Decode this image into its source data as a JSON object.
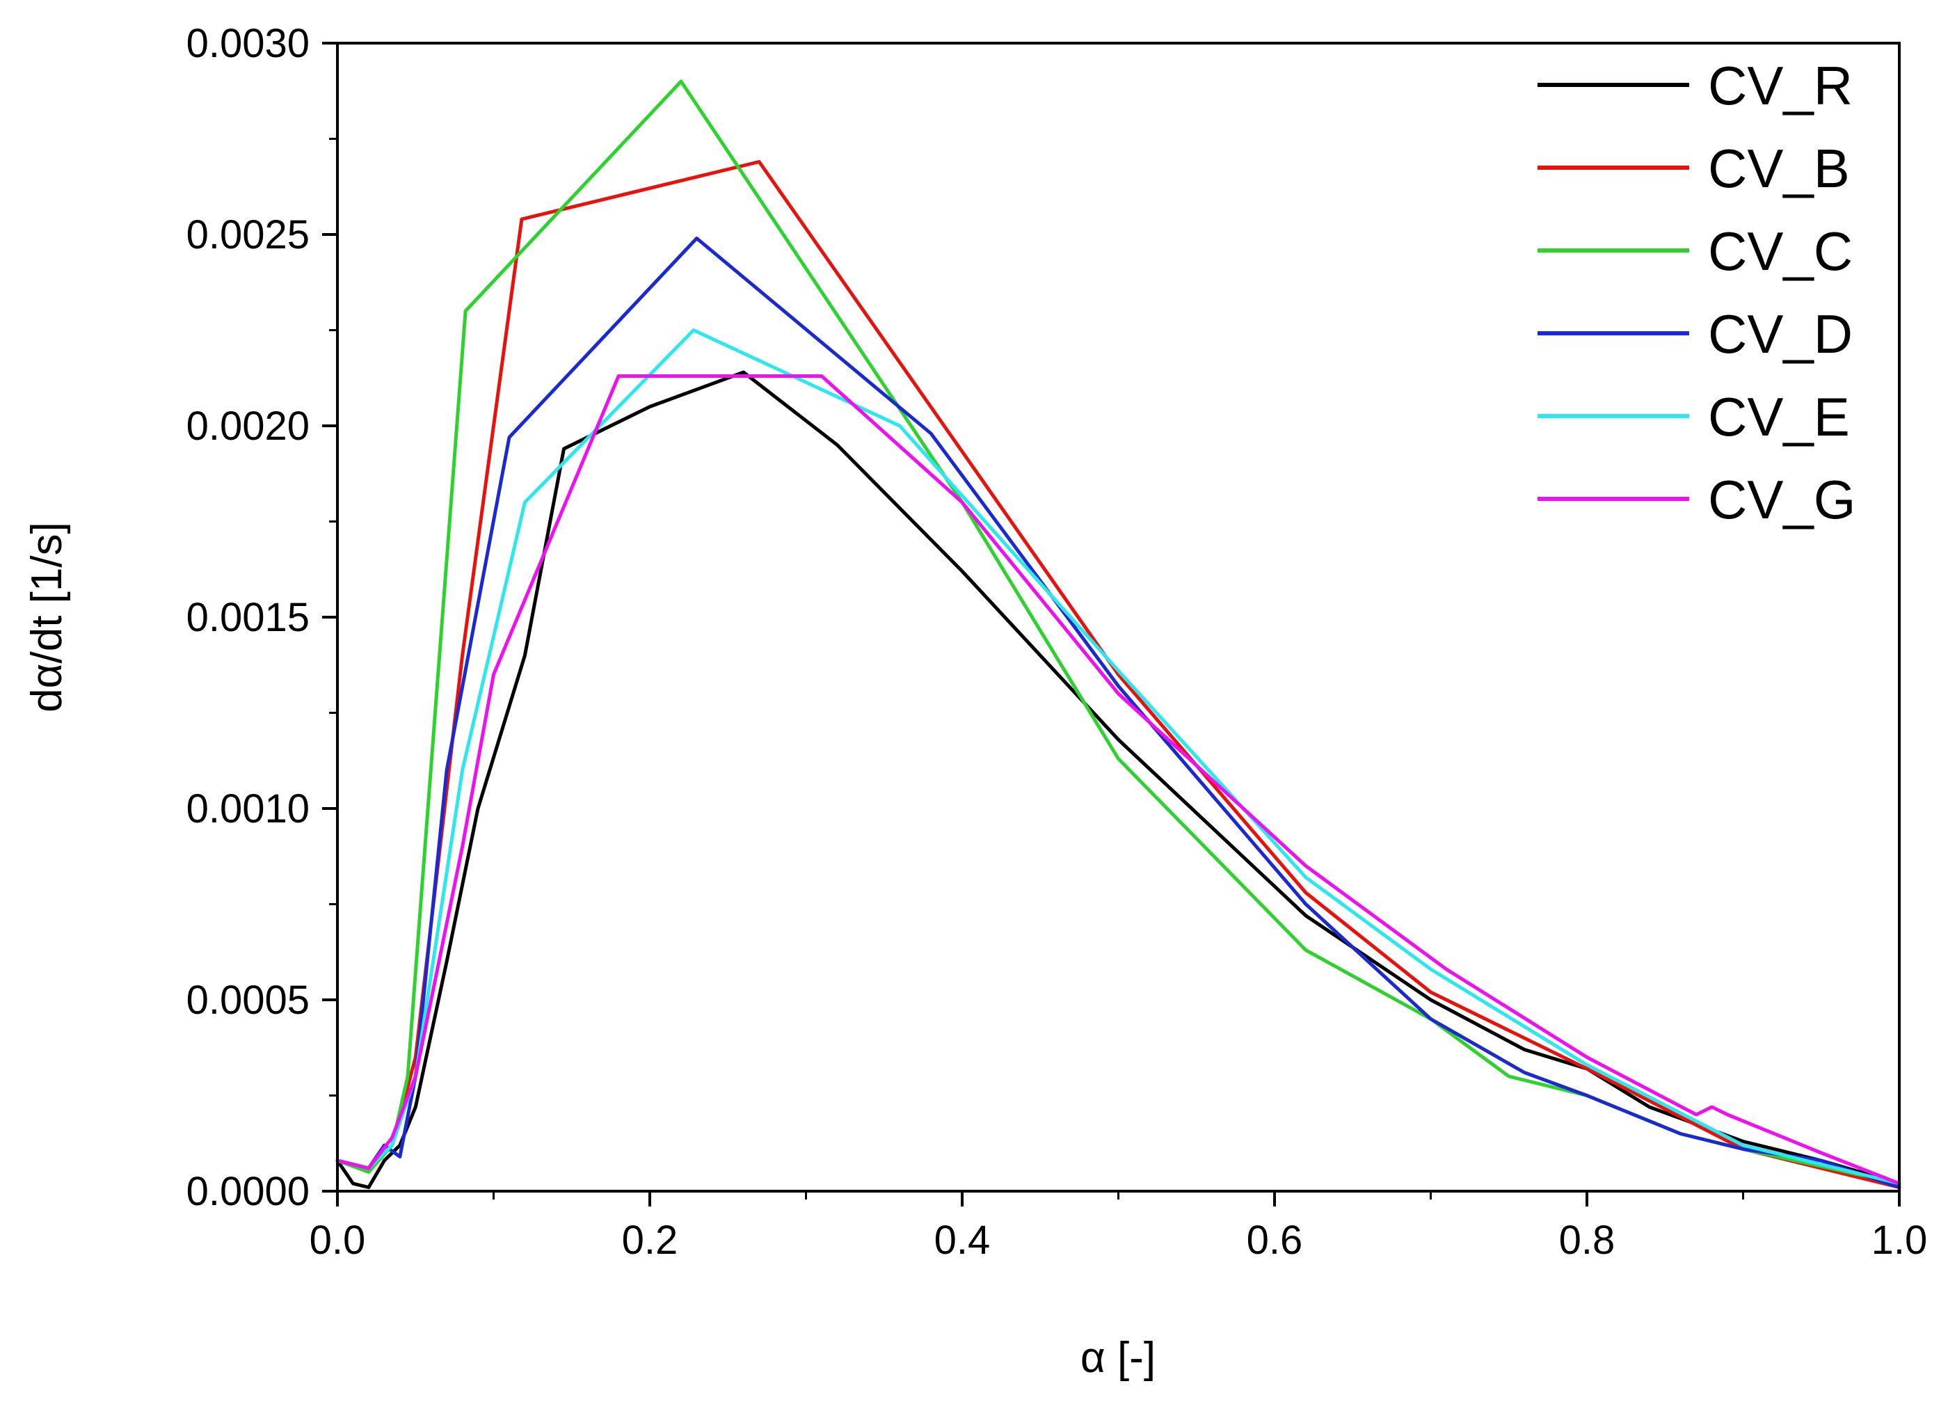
{
  "chart_data": {
    "type": "line",
    "title": "",
    "xlabel": "α [-]",
    "ylabel": "dα/dt [1/s]",
    "xlim": [
      0.0,
      1.0
    ],
    "ylim": [
      0.0,
      0.003
    ],
    "xticks": [
      0.0,
      0.2,
      0.4,
      0.6,
      0.8,
      1.0
    ],
    "xtick_labels": [
      "0.0",
      "0.2",
      "0.4",
      "0.6",
      "0.8",
      "1.0"
    ],
    "yticks": [
      0.0,
      0.0005,
      0.001,
      0.0015,
      0.002,
      0.0025,
      0.003
    ],
    "ytick_labels": [
      "0.0000",
      "0.0005",
      "0.0010",
      "0.0015",
      "0.0020",
      "0.0025",
      "0.0030"
    ],
    "grid": false,
    "legend_position": "top-right",
    "series": [
      {
        "name": "CV_R",
        "color": "#000000",
        "x": [
          0,
          0.01,
          0.02,
          0.03,
          0.04,
          0.05,
          0.07,
          0.09,
          0.12,
          0.145,
          0.2,
          0.26,
          0.32,
          0.4,
          0.5,
          0.62,
          0.7,
          0.76,
          0.8,
          0.84,
          0.9,
          0.95,
          1.0
        ],
        "y": [
          8e-05,
          2e-05,
          1e-05,
          8e-05,
          0.00012,
          0.00022,
          0.0006,
          0.001,
          0.0014,
          0.00194,
          0.00205,
          0.00214,
          0.00195,
          0.00162,
          0.00118,
          0.00072,
          0.0005,
          0.00037,
          0.00032,
          0.00022,
          0.00013,
          8e-05,
          2e-05
        ]
      },
      {
        "name": "CV_B",
        "color": "#e8120c",
        "x": [
          0,
          0.02,
          0.035,
          0.05,
          0.08,
          0.118,
          0.27,
          0.5,
          0.62,
          0.7,
          0.8,
          0.9,
          1.0
        ],
        "y": [
          8e-05,
          6e-05,
          0.00012,
          0.00035,
          0.0014,
          0.00254,
          0.00269,
          0.00135,
          0.00078,
          0.00052,
          0.00032,
          0.00011,
          1e-05
        ]
      },
      {
        "name": "CV_C",
        "color": "#2ed22e",
        "x": [
          0,
          0.02,
          0.035,
          0.045,
          0.082,
          0.22,
          0.4,
          0.5,
          0.62,
          0.7,
          0.75,
          0.8,
          0.86,
          0.9,
          1.0
        ],
        "y": [
          8e-05,
          5e-05,
          0.00012,
          0.0003,
          0.0023,
          0.0029,
          0.0018,
          0.00113,
          0.00063,
          0.00045,
          0.0003,
          0.00025,
          0.00015,
          0.00011,
          2e-05
        ]
      },
      {
        "name": "CV_D",
        "color": "#1a2ad0",
        "x": [
          0,
          0.02,
          0.03,
          0.04,
          0.05,
          0.07,
          0.11,
          0.23,
          0.38,
          0.5,
          0.62,
          0.7,
          0.76,
          0.8,
          0.86,
          0.9,
          0.95,
          1.0
        ],
        "y": [
          8e-05,
          6e-05,
          0.00012,
          9e-05,
          0.0003,
          0.0011,
          0.00197,
          0.00249,
          0.00198,
          0.00132,
          0.00075,
          0.00045,
          0.00031,
          0.00025,
          0.00015,
          0.00011,
          8e-05,
          1e-05
        ]
      },
      {
        "name": "CV_E",
        "color": "#2ee6ee",
        "x": [
          0,
          0.02,
          0.035,
          0.05,
          0.08,
          0.12,
          0.228,
          0.36,
          0.5,
          0.62,
          0.7,
          0.8,
          0.9,
          1.0
        ],
        "y": [
          8e-05,
          6e-05,
          0.00012,
          0.0003,
          0.0011,
          0.0018,
          0.00225,
          0.002,
          0.00136,
          0.00082,
          0.00058,
          0.00033,
          0.00012,
          2e-05
        ]
      },
      {
        "name": "CV_G",
        "color": "#ee10ee",
        "x": [
          0,
          0.02,
          0.035,
          0.05,
          0.08,
          0.1,
          0.18,
          0.31,
          0.4,
          0.5,
          0.62,
          0.67,
          0.71,
          0.8,
          0.87,
          0.88,
          0.89,
          0.95,
          1.0
        ],
        "y": [
          8e-05,
          6e-05,
          0.00014,
          0.0003,
          0.0009,
          0.00135,
          0.00213,
          0.00213,
          0.0018,
          0.0013,
          0.00085,
          0.0007,
          0.00058,
          0.00035,
          0.0002,
          0.00022,
          0.0002,
          0.0001,
          2e-05
        ]
      }
    ]
  }
}
